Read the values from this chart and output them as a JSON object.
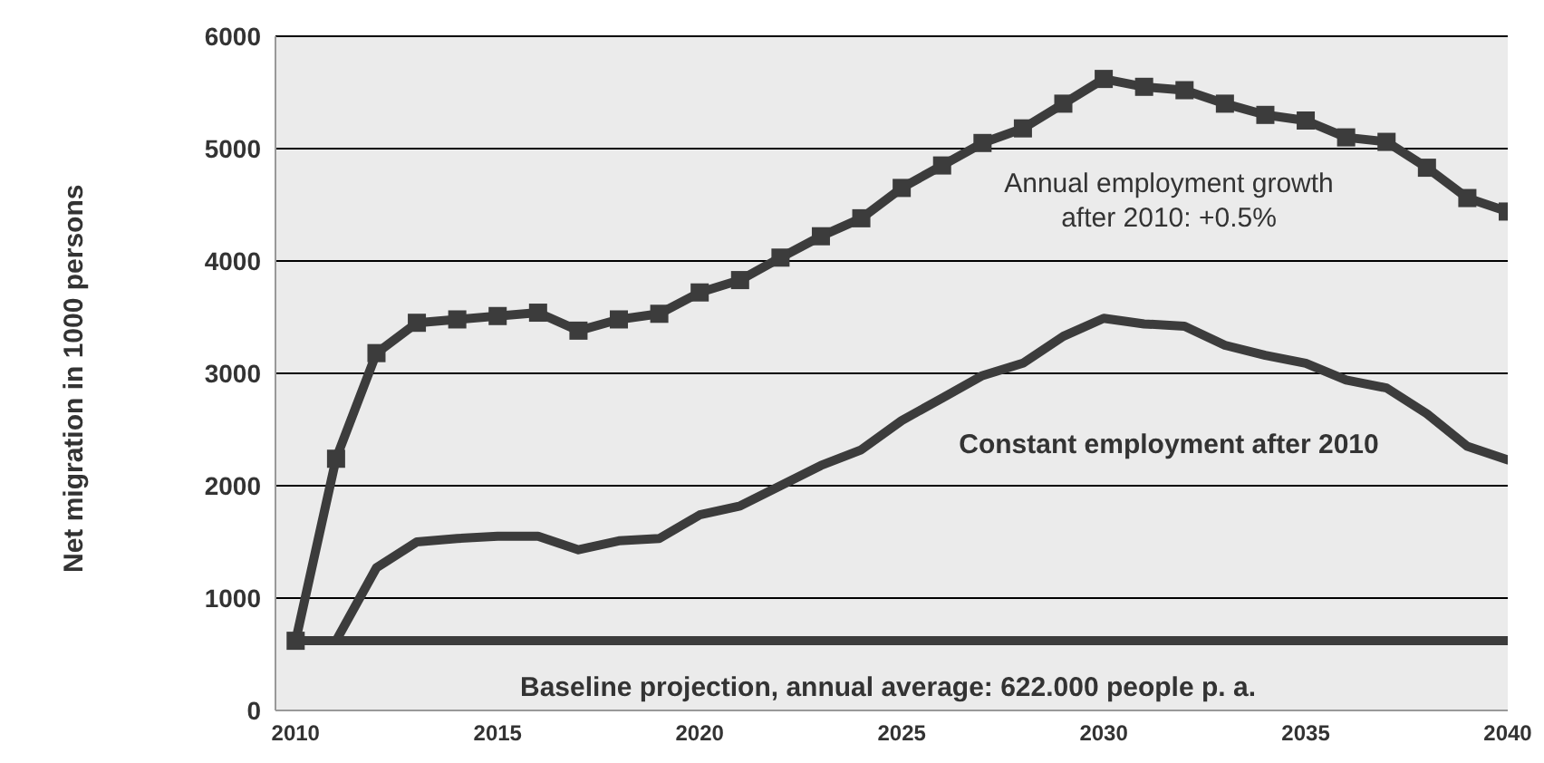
{
  "chart_data": {
    "type": "line",
    "ylabel": "Net migration in 1000 persons",
    "x": [
      2010,
      2011,
      2012,
      2013,
      2014,
      2015,
      2016,
      2017,
      2018,
      2019,
      2020,
      2021,
      2022,
      2023,
      2024,
      2025,
      2026,
      2027,
      2028,
      2029,
      2030,
      2031,
      2032,
      2033,
      2034,
      2035,
      2036,
      2037,
      2038,
      2039,
      2040
    ],
    "xlim": [
      2009.5,
      2040
    ],
    "xticks": [
      2010,
      2015,
      2020,
      2025,
      2030,
      2035,
      2040
    ],
    "ylim": [
      0,
      6000
    ],
    "yticks": [
      0,
      1000,
      2000,
      3000,
      4000,
      5000,
      6000
    ],
    "grid": "y",
    "legend": false,
    "line_style": "solid",
    "series": [
      {
        "name": "Annual employment growth after 2010: +0.5%",
        "color": "#3c3c3c",
        "marker": "square",
        "values": [
          620,
          2240,
          3180,
          3450,
          3480,
          3510,
          3540,
          3380,
          3480,
          3530,
          3720,
          3830,
          4030,
          4220,
          4380,
          4650,
          4850,
          5050,
          5180,
          5400,
          5620,
          5550,
          5520,
          5400,
          5300,
          5250,
          5100,
          5060,
          4830,
          4560,
          4440
        ]
      },
      {
        "name": "Constant employment after 2010",
        "color": "#3c3c3c",
        "marker": "none",
        "values": [
          620,
          620,
          1270,
          1500,
          1530,
          1550,
          1550,
          1430,
          1510,
          1530,
          1740,
          1820,
          2000,
          2180,
          2320,
          2580,
          2780,
          2980,
          3090,
          3330,
          3490,
          3440,
          3420,
          3250,
          3160,
          3090,
          2940,
          2870,
          2640,
          2350,
          2230
        ]
      },
      {
        "name": "Baseline projection, annual average: 622.000 people p. a.",
        "color": "#3c3c3c",
        "marker": "none",
        "values": [
          620,
          620,
          620,
          620,
          620,
          620,
          620,
          620,
          620,
          620,
          620,
          620,
          620,
          620,
          620,
          620,
          620,
          620,
          620,
          620,
          620,
          620,
          620,
          620,
          620,
          620,
          620,
          620,
          620,
          620,
          620
        ]
      }
    ]
  }
}
